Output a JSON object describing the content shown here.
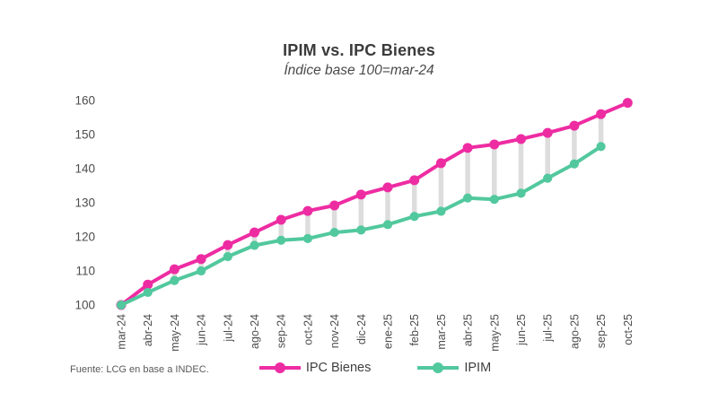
{
  "title": "IPIM vs. IPC Bienes",
  "subtitle": "Índice base 100=mar-24",
  "footer": "Fuente: LCG en base a INDEC.",
  "colors": {
    "ipc_bienes": "#ee2ca2",
    "ipim": "#52c89e",
    "connector": "#dddddd",
    "axis_text": "#4d4d4d",
    "title_text": "#3b3b3b",
    "background": "#ffffff"
  },
  "legend": {
    "entries": [
      "IPC Bienes",
      "IPIM"
    ],
    "position": "bottom"
  },
  "chart_data": {
    "type": "line",
    "title": "IPIM vs. IPC Bienes",
    "subtitle": "Índice base 100=mar-24",
    "source_note": "Fuente: LCG en base a INDEC.",
    "categories": [
      "mar-24",
      "abr-24",
      "may-24",
      "jun-24",
      "jul-24",
      "ago-24",
      "sep-24",
      "oct-24",
      "nov-24",
      "dic-24",
      "ene-25",
      "feb-25",
      "mar-25",
      "abr-25",
      "may-25",
      "jun-25",
      "jul-25",
      "ago-25",
      "sep-25",
      "oct-25"
    ],
    "series": [
      {
        "name": "IPC Bienes",
        "color": "#ee2ca2",
        "values": [
          100,
          106,
          110.5,
          113.5,
          117.6,
          121.3,
          125,
          127.6,
          129.2,
          132.4,
          134.5,
          136.6,
          141.6,
          146.1,
          147.1,
          148.7,
          150.5,
          152.6,
          156,
          159.3
        ]
      },
      {
        "name": "IPIM",
        "color": "#52c89e",
        "values": [
          100,
          103.7,
          107.2,
          110,
          114.2,
          117.5,
          119,
          119.5,
          121.3,
          122,
          123.6,
          126,
          127.5,
          131.4,
          131,
          132.8,
          137.2,
          141.4,
          146.5,
          null
        ]
      }
    ],
    "xlabel": "",
    "ylabel": "",
    "ylim": [
      100,
      160
    ],
    "yticks": [
      100,
      110,
      120,
      130,
      140,
      150,
      160
    ],
    "grid": false,
    "legend_position": "bottom",
    "gap_connectors": true,
    "x_tick_rotation": -90
  }
}
